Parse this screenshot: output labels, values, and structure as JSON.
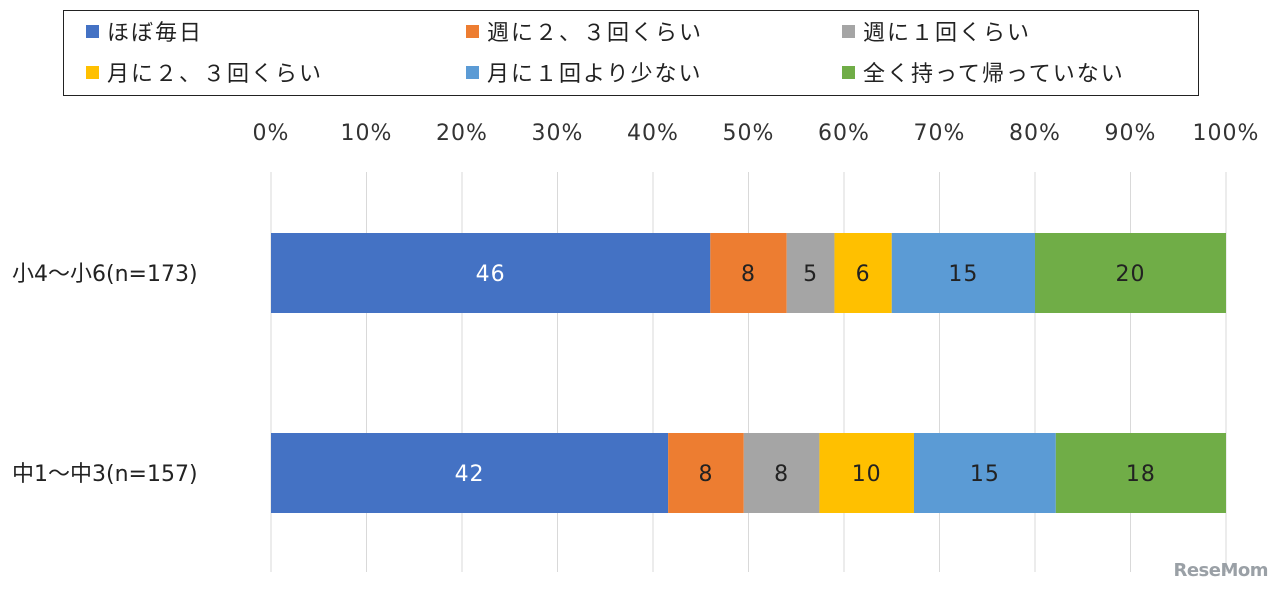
{
  "chart_data": {
    "type": "bar",
    "orientation": "horizontal",
    "stacked": true,
    "percent_scale": true,
    "categories": [
      "小4〜小6(n=173)",
      "中1〜中3(n=157)"
    ],
    "series": [
      {
        "name": "ほぼ毎日",
        "values": [
          46,
          42
        ],
        "color": "#4472C4"
      },
      {
        "name": "週に２、３回くらい",
        "values": [
          8,
          8
        ],
        "color": "#ED7D31"
      },
      {
        "name": "週に１回くらい",
        "values": [
          5,
          8
        ],
        "color": "#A5A5A5"
      },
      {
        "name": "月に２、３回くらい",
        "values": [
          6,
          10
        ],
        "color": "#FFC000"
      },
      {
        "name": "月に１回より少ない",
        "values": [
          15,
          15
        ],
        "color": "#5B9BD5"
      },
      {
        "name": "全く持って帰っていない",
        "values": [
          20,
          18
        ],
        "color": "#70AD47"
      }
    ],
    "xlim": [
      0,
      100
    ],
    "xticks": [
      "0%",
      "10%",
      "20%",
      "30%",
      "40%",
      "50%",
      "60%",
      "70%",
      "80%",
      "90%",
      "100%"
    ],
    "grid": true,
    "legend_position": "top",
    "title": "",
    "xlabel": "",
    "ylabel": ""
  },
  "watermark": "ReseMom"
}
